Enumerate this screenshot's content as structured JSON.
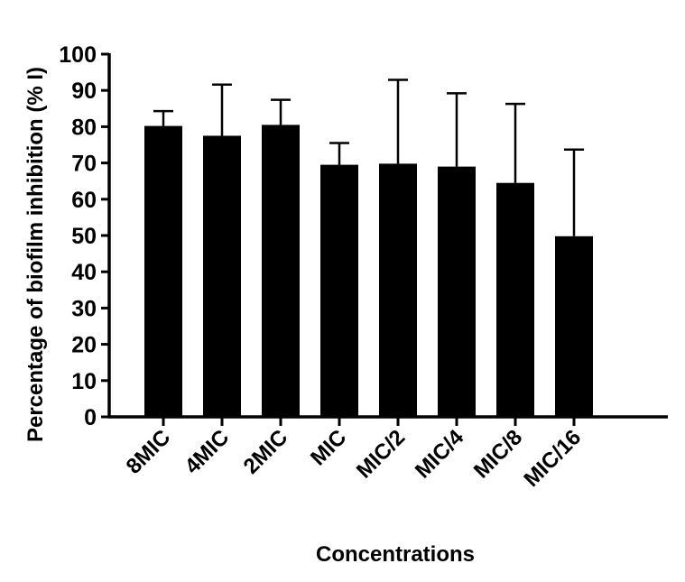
{
  "chart_data": {
    "type": "bar",
    "title": "",
    "xlabel": "Concentrations",
    "ylabel": "Percentage of biofilm inhibition (% I)",
    "categories": [
      "8MIC",
      "4MIC",
      "2MIC",
      "MIC",
      "MIC/2",
      "MIC/4",
      "MIC/8",
      "MIC/16"
    ],
    "values": [
      80.2,
      77.5,
      80.5,
      69.5,
      69.8,
      69.0,
      64.5,
      49.8
    ],
    "error_upper": [
      84.3,
      91.6,
      87.4,
      75.5,
      92.9,
      89.2,
      86.3,
      73.7
    ],
    "ylim": [
      0,
      100
    ],
    "yticks": [
      0,
      10,
      20,
      30,
      40,
      50,
      60,
      70,
      80,
      90,
      100
    ],
    "grid": false,
    "bar_color": "#000000"
  }
}
